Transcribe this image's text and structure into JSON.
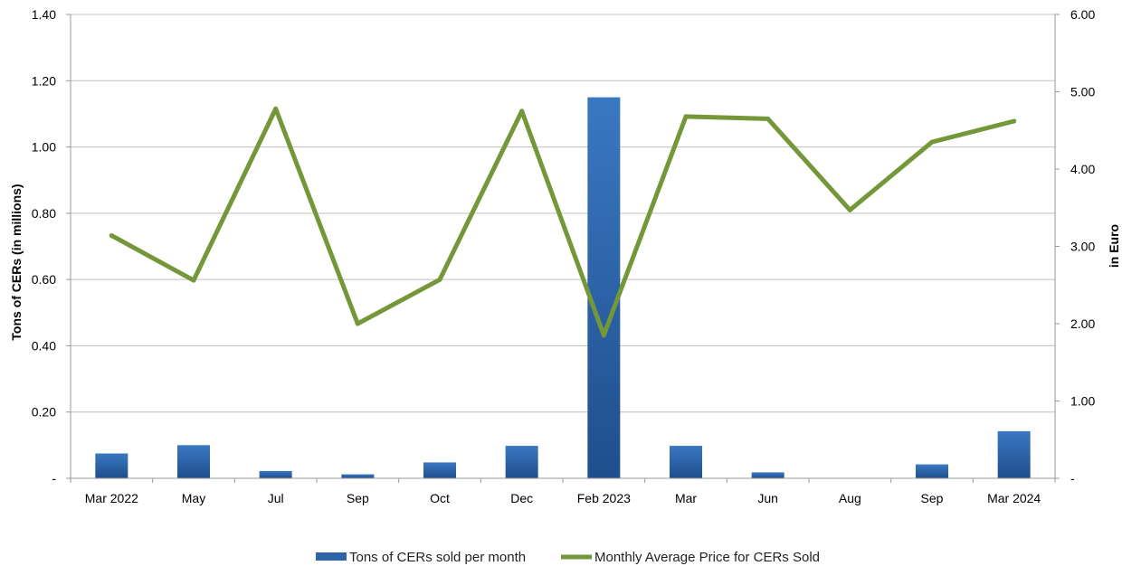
{
  "chart_data": {
    "type": "bar+line",
    "categories": [
      "Mar 2022",
      "May",
      "Jul",
      "Sep",
      "Oct",
      "Dec",
      "Feb 2023",
      "Mar",
      "Jun",
      "Aug",
      "Sep",
      "Mar 2024"
    ],
    "series": [
      {
        "name": "Tons of CERs sold per month",
        "type": "bar",
        "axis": "left",
        "color": "#2e64a8",
        "values": [
          0.075,
          0.1,
          0.022,
          0.012,
          0.048,
          0.098,
          1.15,
          0.098,
          0.018,
          0.0,
          0.042,
          0.142
        ]
      },
      {
        "name": "Monthly Average Price for CERs Sold",
        "type": "line",
        "axis": "right",
        "color": "#74973a",
        "values": [
          3.14,
          2.56,
          4.78,
          2.0,
          2.57,
          4.75,
          1.85,
          4.68,
          4.65,
          3.47,
          4.35,
          4.62
        ]
      }
    ],
    "ylabel": "Tons of CERs (in  millions)",
    "y2label": "in Euro",
    "ylim": [
      0,
      1.4
    ],
    "y2lim": [
      0,
      6
    ],
    "yticks": [
      {
        "v": 0,
        "label": "-"
      },
      {
        "v": 0.2,
        "label": "0.20"
      },
      {
        "v": 0.4,
        "label": "0.40"
      },
      {
        "v": 0.6,
        "label": "0.60"
      },
      {
        "v": 0.8,
        "label": "0.80"
      },
      {
        "v": 1.0,
        "label": "1.00"
      },
      {
        "v": 1.2,
        "label": "1.20"
      },
      {
        "v": 1.4,
        "label": "1.40"
      }
    ],
    "y2ticks": [
      {
        "v": 0,
        "label": "-"
      },
      {
        "v": 1,
        "label": "1.00"
      },
      {
        "v": 2,
        "label": "2.00"
      },
      {
        "v": 3,
        "label": "3.00"
      },
      {
        "v": 4,
        "label": "4.00"
      },
      {
        "v": 5,
        "label": "5.00"
      },
      {
        "v": 6,
        "label": "6.00"
      }
    ],
    "grid": true,
    "legend": "bottom-center"
  }
}
